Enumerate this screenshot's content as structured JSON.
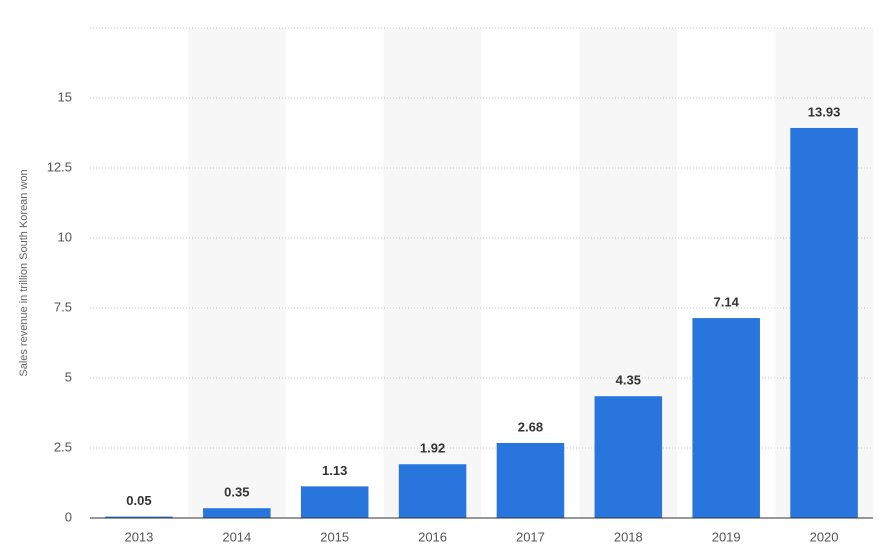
{
  "chart_data": {
    "type": "bar",
    "y_label": "Sales revenue in trillion South Korean won",
    "categories": [
      "2013",
      "2014",
      "2015",
      "2016",
      "2017",
      "2018",
      "2019",
      "2020"
    ],
    "values": [
      0.05,
      0.35,
      1.13,
      1.92,
      2.68,
      4.35,
      7.14,
      13.93
    ],
    "color": "#2876dd",
    "ylim": [
      0,
      17.5
    ],
    "yticks": [
      0,
      2.5,
      5,
      7.5,
      10,
      12.5,
      15
    ],
    "grid": true
  }
}
